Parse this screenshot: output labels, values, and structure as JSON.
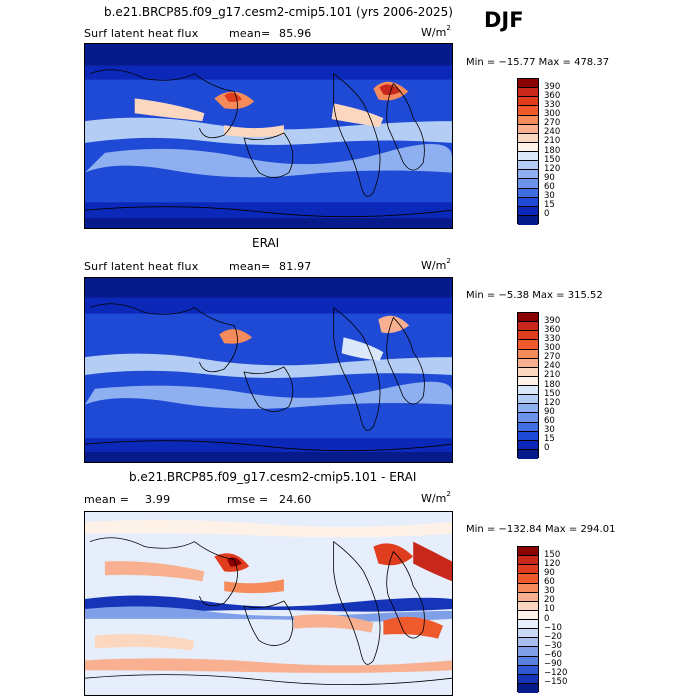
{
  "season": "DJF",
  "panels": [
    {
      "id": "model",
      "title": "b.e21.BRCP85.f09_g17.cesm2-cmip5.101 (yrs 2006-2025)",
      "left_label": "Surf latent heat flux",
      "stat_label": "mean=",
      "stat_value": "85.96",
      "units_base": "W/m",
      "units_exp": "2",
      "minmax": "Min = −15.77 Max = 478.37",
      "colorbar": [
        "390",
        "360",
        "330",
        "300",
        "270",
        "240",
        "210",
        "180",
        "150",
        "120",
        "90",
        "60",
        "30",
        "15",
        "0"
      ],
      "colors": [
        "#8b0000",
        "#c8281c",
        "#e03c1e",
        "#ef5a2c",
        "#f58a5a",
        "#f8b090",
        "#fbd7c0",
        "#fdf1e8",
        "#dae8fa",
        "#b4cdf5",
        "#8eb0f0",
        "#6b93ea",
        "#3f6ee2",
        "#1f4ad6",
        "#0c28b8",
        "#071a8a"
      ]
    },
    {
      "id": "obs",
      "title": "ERAI",
      "left_label": "Surf latent heat flux",
      "stat_label": "mean=",
      "stat_value": "81.97",
      "units_base": "W/m",
      "units_exp": "2",
      "minmax": "Min =  −5.38 Max = 315.52",
      "colorbar": [
        "390",
        "360",
        "330",
        "300",
        "270",
        "240",
        "210",
        "180",
        "150",
        "120",
        "90",
        "60",
        "30",
        "15",
        "0"
      ],
      "colors": [
        "#8b0000",
        "#c8281c",
        "#e03c1e",
        "#ef5a2c",
        "#f58a5a",
        "#f8b090",
        "#fbd7c0",
        "#fdf1e8",
        "#dae8fa",
        "#b4cdf5",
        "#8eb0f0",
        "#6b93ea",
        "#3f6ee2",
        "#1f4ad6",
        "#0c28b8",
        "#071a8a"
      ]
    },
    {
      "id": "diff",
      "title": "b.e21.BRCP85.f09_g17.cesm2-cmip5.101 - ERAI",
      "left_label": "mean =",
      "left_value": "3.99",
      "stat_label": "rmse =",
      "stat_value": "24.60",
      "units_base": "W/m",
      "units_exp": "2",
      "minmax": "Min = −132.84 Max = 294.01",
      "colorbar": [
        "150",
        "120",
        "90",
        "60",
        "30",
        "20",
        "10",
        "0",
        "−10",
        "−20",
        "−30",
        "−60",
        "−90",
        "−120",
        "−150"
      ],
      "colors": [
        "#8b0000",
        "#c8281c",
        "#e03c1e",
        "#ef5a2c",
        "#f58a5a",
        "#f8b090",
        "#fbd7c0",
        "#fdf1e8",
        "#e6eefb",
        "#c8d8f5",
        "#a6bff0",
        "#7fa0e8",
        "#5780e0",
        "#2e58d4",
        "#1534b8",
        "#071a8a"
      ]
    }
  ]
}
